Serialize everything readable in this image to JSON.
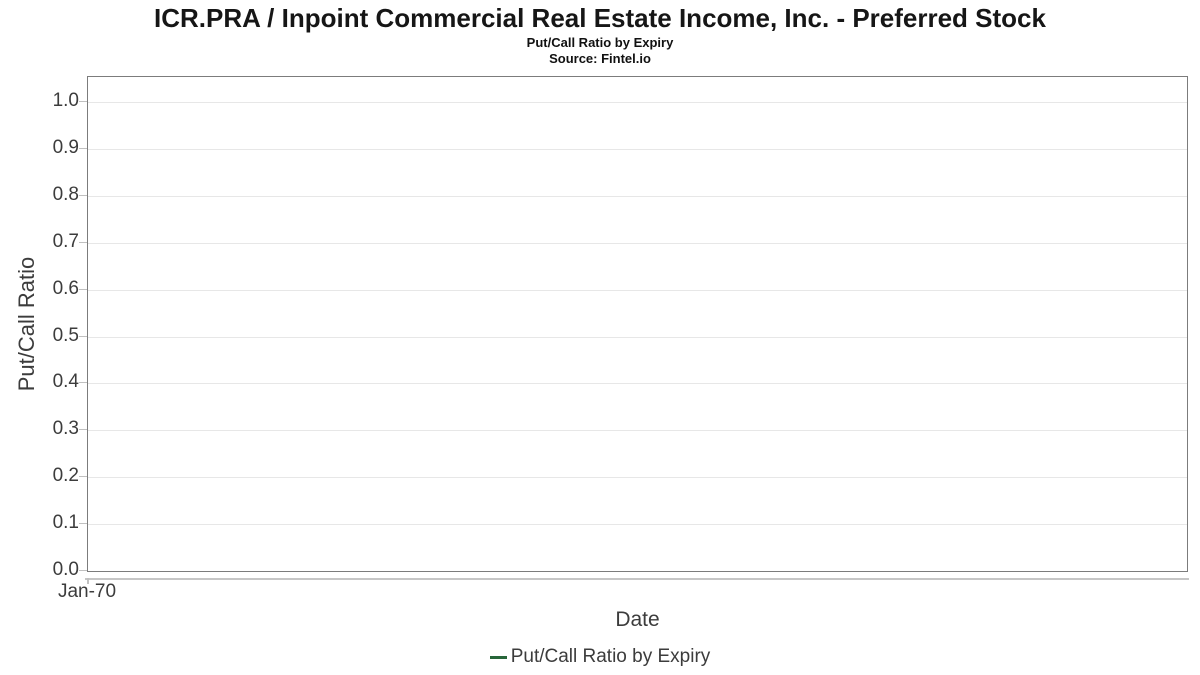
{
  "header": {
    "title": "ICR.PRA / Inpoint Commercial Real Estate Income, Inc. - Preferred Stock",
    "subtitle": "Put/Call Ratio by Expiry",
    "source": "Source: Fintel.io"
  },
  "chart_data": {
    "type": "line",
    "title": "Put/Call Ratio by Expiry",
    "xlabel": "Date",
    "ylabel": "Put/Call Ratio",
    "x_tick_labels": [
      "Jan-70"
    ],
    "y_ticks": [
      0.0,
      0.1,
      0.2,
      0.3,
      0.4,
      0.5,
      0.6,
      0.7,
      0.8,
      0.9,
      1.0
    ],
    "ylim": [
      0.0,
      1.05
    ],
    "grid": "horizontal-only",
    "legend": {
      "position": "bottom-center",
      "entries": [
        {
          "label": "Put/Call Ratio by Expiry",
          "marker": "line-dash",
          "color": "#28663a"
        }
      ]
    },
    "series": [
      {
        "name": "Put/Call Ratio by Expiry",
        "x": [],
        "values": []
      }
    ]
  },
  "colors": {
    "legend_green": "#28663a",
    "plot_border": "#7c7c7c",
    "gridline": "#e7e7e7",
    "axis_line": "#c6c6c6",
    "tick_mark": "#c0c0c0",
    "text": "#3c3c3c",
    "title_text": "#161616",
    "background": "#ffffff"
  }
}
